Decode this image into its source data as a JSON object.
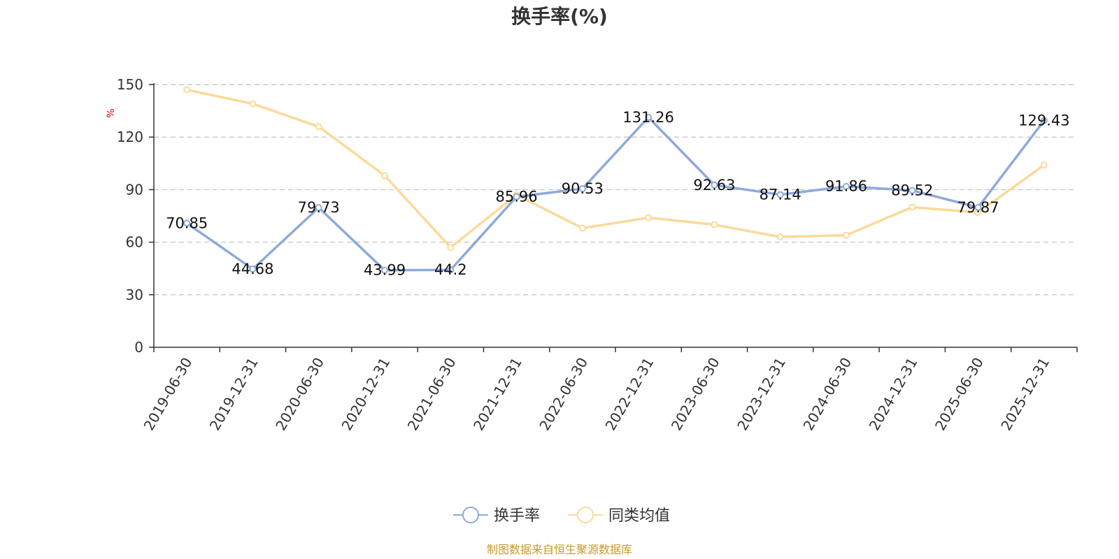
{
  "chart_data": {
    "type": "line",
    "title": "换手率(%)",
    "ylabel": "%",
    "xlabel": "",
    "ylim": [
      0,
      150
    ],
    "yticks": [
      0,
      30,
      60,
      90,
      120,
      150
    ],
    "grid": true,
    "legend_position": "bottom-center",
    "categories": [
      "2019-06-30",
      "2019-12-31",
      "2020-06-30",
      "2020-12-31",
      "2021-06-30",
      "2021-12-31",
      "2022-06-30",
      "2022-12-31",
      "2023-06-30",
      "2023-12-31",
      "2024-06-30",
      "2024-12-31",
      "2025-06-30",
      "2025-12-31"
    ],
    "series": [
      {
        "name": "换手率",
        "color": "#8eaadb",
        "show_labels": true,
        "values": [
          70.85,
          44.68,
          79.73,
          43.99,
          44.2,
          85.96,
          90.53,
          131.26,
          92.63,
          87.14,
          91.86,
          89.52,
          79.87,
          129.43
        ]
      },
      {
        "name": "同类均值",
        "color": "#fcd99a",
        "show_labels": false,
        "values": [
          147,
          139,
          126,
          98,
          57,
          87,
          68,
          74,
          70,
          63,
          64,
          80,
          77,
          104
        ]
      }
    ]
  },
  "footer": {
    "source_text": "制图数据来自恒生聚源数据库"
  }
}
